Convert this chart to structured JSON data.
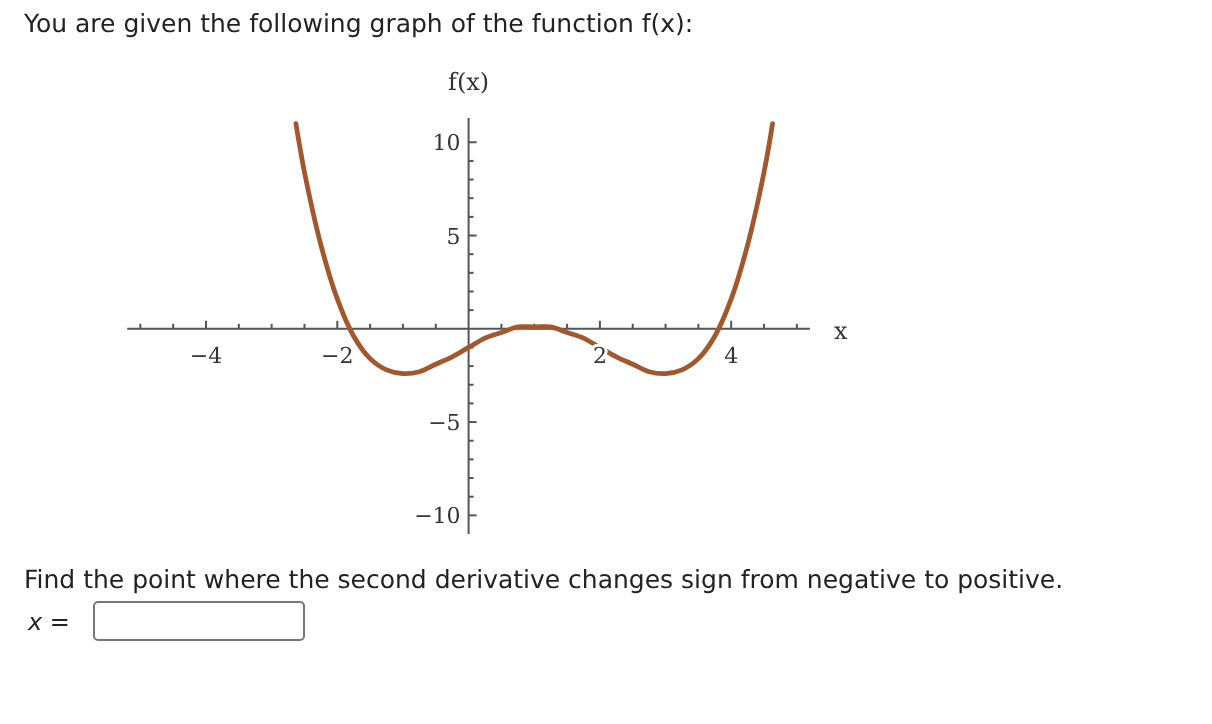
{
  "chart_data": {
    "type": "line",
    "title": "You are given the following graph of the function f(x):",
    "xlabel": "x",
    "ylabel": "f(x)",
    "annotations": [
      "Find the point where the second derivative changes sign from negative to positive.",
      "x ="
    ],
    "x": [
      -2.63,
      -2.5,
      -2.25,
      -2,
      -1.75,
      -1.5,
      -1.25,
      -1,
      -0.75,
      -0.5,
      -0.25,
      0,
      0.25,
      0.5,
      0.75,
      1,
      1.25,
      1.5,
      1.75,
      2,
      2.25,
      2.5,
      2.75,
      3,
      3.25,
      3.5,
      3.75,
      4,
      4.25,
      4.5,
      4.63
    ],
    "series": [
      {
        "color": "#a0582c",
        "values": [
          11,
          8.4,
          4.5,
          1.6,
          -0.4,
          -1.6,
          -2.2,
          -2.4,
          -2.3,
          -1.9,
          -1.5,
          -1,
          -0.5,
          -0.2,
          0.1,
          0.1,
          0.1,
          -0.2,
          -0.5,
          -1,
          -1.5,
          -1.9,
          -2.3,
          -2.4,
          -2.2,
          -1.6,
          -0.4,
          1.6,
          4.5,
          8.4,
          11
        ]
      }
    ],
    "xlim": [
      -5.2,
      5.2
    ],
    "ylim": [
      -11,
      11.3
    ],
    "xticks": [
      {
        "value": -5,
        "label": null
      },
      {
        "value": -4.5,
        "label": null
      },
      {
        "value": -4,
        "label": "−4"
      },
      {
        "value": -3.5,
        "label": null
      },
      {
        "value": -3,
        "label": null
      },
      {
        "value": -2.5,
        "label": null
      },
      {
        "value": -2,
        "label": "−2"
      },
      {
        "value": -1.5,
        "label": null
      },
      {
        "value": -1,
        "label": null
      },
      {
        "value": -0.5,
        "label": null
      },
      {
        "value": 0.5,
        "label": null
      },
      {
        "value": 1,
        "label": null
      },
      {
        "value": 1.5,
        "label": null
      },
      {
        "value": 2,
        "label": "2"
      },
      {
        "value": 2.5,
        "label": null
      },
      {
        "value": 3,
        "label": null
      },
      {
        "value": 3.5,
        "label": null
      },
      {
        "value": 4,
        "label": "4"
      },
      {
        "value": 4.5,
        "label": null
      },
      {
        "value": 5,
        "label": null
      }
    ],
    "yticks": [
      {
        "value": -10,
        "label": "−10"
      },
      {
        "value": -9,
        "label": null
      },
      {
        "value": -8,
        "label": null
      },
      {
        "value": -7,
        "label": null
      },
      {
        "value": -6,
        "label": null
      },
      {
        "value": -5,
        "label": "−5"
      },
      {
        "value": -4,
        "label": null
      },
      {
        "value": -3,
        "label": null
      },
      {
        "value": -2,
        "label": null
      },
      {
        "value": -1,
        "label": null
      },
      {
        "value": 1,
        "label": null
      },
      {
        "value": 2,
        "label": null
      },
      {
        "value": 3,
        "label": null
      },
      {
        "value": 4,
        "label": null
      },
      {
        "value": 5,
        "label": "5"
      },
      {
        "value": 6,
        "label": null
      },
      {
        "value": 7,
        "label": null
      },
      {
        "value": 8,
        "label": null
      },
      {
        "value": 9,
        "label": null
      },
      {
        "value": 10,
        "label": "10"
      }
    ],
    "marker": "none",
    "line_style": "solid",
    "grid": false
  }
}
